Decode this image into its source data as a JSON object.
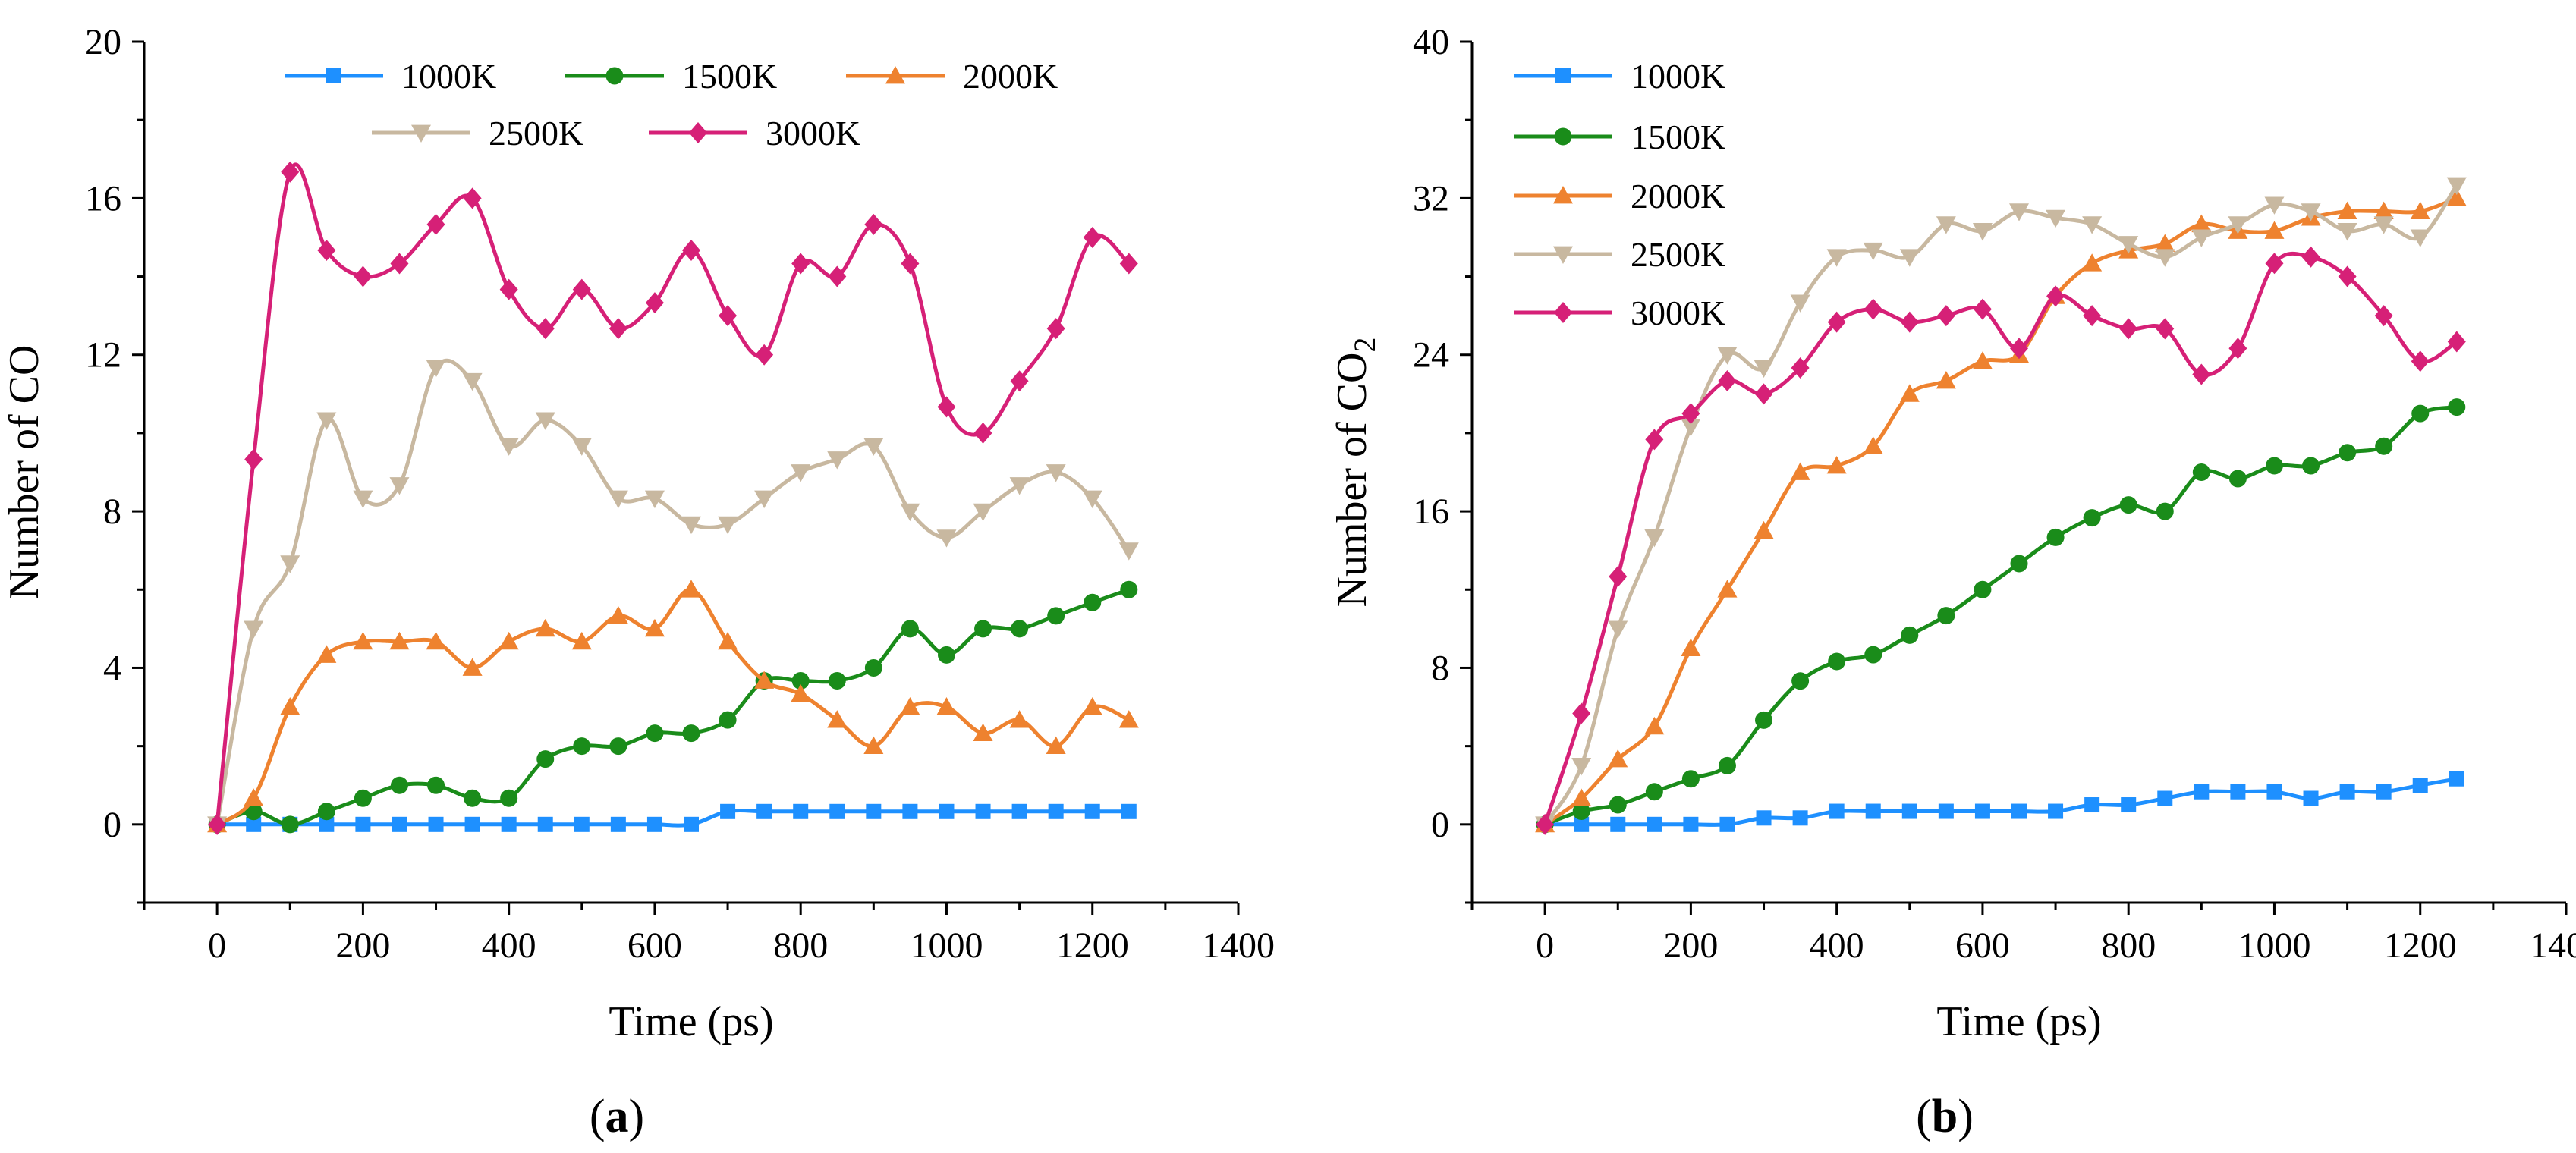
{
  "figure": {
    "panel_labels": [
      "(a)",
      "(b)"
    ],
    "legend_names": [
      "1000K",
      "1500K",
      "2000K",
      "2500K",
      "3000K"
    ],
    "series_colors": {
      "1000K": "#1E90FF",
      "1500K": "#1A8C1A",
      "2000K": "#EE822F",
      "2500K": "#C8B8A0",
      "3000K": "#D62077"
    },
    "marker_shapes": {
      "1000K": "square",
      "1500K": "circle",
      "2000K": "triangle-up",
      "2500K": "triangle-down",
      "3000K": "diamond"
    }
  },
  "chart_data": [
    {
      "type": "line",
      "panel": "(a)",
      "title": "",
      "xlabel": "Time (ps)",
      "ylabel": "Number of CO",
      "xlim": [
        -100,
        1400
      ],
      "ylim": [
        -2,
        20
      ],
      "xticks": [
        0,
        200,
        400,
        600,
        800,
        1000,
        1200,
        1400
      ],
      "yticks": [
        0,
        4,
        8,
        12,
        16,
        20
      ],
      "legend_position": "top",
      "x": [
        0,
        50,
        100,
        150,
        200,
        250,
        300,
        350,
        400,
        450,
        500,
        550,
        600,
        650,
        700,
        750,
        800,
        850,
        900,
        950,
        1000,
        1050,
        1100,
        1150,
        1200,
        1250
      ],
      "series": [
        {
          "name": "1000K",
          "values": [
            0,
            0,
            0,
            0,
            0,
            0,
            0,
            0,
            0,
            0,
            0,
            0,
            0,
            0,
            0.33,
            0.33,
            0.33,
            0.33,
            0.33,
            0.33,
            0.33,
            0.33,
            0.33,
            0.33,
            0.33,
            0.33
          ]
        },
        {
          "name": "1500K",
          "values": [
            0,
            0.33,
            0,
            0.33,
            0.67,
            1,
            1,
            0.67,
            0.67,
            1.67,
            2,
            2,
            2.33,
            2.33,
            2.67,
            3.67,
            3.67,
            3.67,
            4,
            5,
            4.33,
            5,
            5,
            5.33,
            5.67,
            6
          ]
        },
        {
          "name": "2000K",
          "values": [
            0,
            0.67,
            3,
            4.33,
            4.67,
            4.67,
            4.67,
            4,
            4.67,
            5,
            4.67,
            5.33,
            5,
            6,
            4.67,
            3.67,
            3.33,
            2.67,
            2,
            3,
            3,
            2.33,
            2.67,
            2,
            3,
            2.67
          ]
        },
        {
          "name": "2500K",
          "values": [
            0,
            5,
            6.67,
            10.33,
            8.33,
            8.67,
            11.67,
            11.33,
            9.67,
            10.33,
            9.67,
            8.33,
            8.33,
            7.67,
            7.67,
            8.33,
            9,
            9.33,
            9.67,
            8,
            7.33,
            8,
            8.67,
            9,
            8.33,
            7
          ]
        },
        {
          "name": "3000K",
          "values": [
            0,
            9.33,
            16.67,
            14.67,
            14,
            14.33,
            15.33,
            16,
            13.67,
            12.67,
            13.67,
            12.67,
            13.33,
            14.67,
            13,
            12,
            14.33,
            14,
            15.33,
            14.33,
            10.67,
            10,
            11.33,
            12.67,
            15,
            14.33
          ]
        }
      ]
    },
    {
      "type": "line",
      "panel": "(b)",
      "title": "",
      "xlabel": "Time (ps)",
      "ylabel": "Number of CO",
      "ylabel_subscript": "2",
      "xlim": [
        -100,
        1400
      ],
      "ylim": [
        -4,
        40
      ],
      "xticks": [
        0,
        200,
        400,
        600,
        800,
        1000,
        1200,
        1400
      ],
      "yticks": [
        0,
        8,
        16,
        24,
        32,
        40
      ],
      "legend_position": "top-left",
      "x": [
        0,
        50,
        100,
        150,
        200,
        250,
        300,
        350,
        400,
        450,
        500,
        550,
        600,
        650,
        700,
        750,
        800,
        850,
        900,
        950,
        1000,
        1050,
        1100,
        1150,
        1200,
        1250
      ],
      "series": [
        {
          "name": "1000K",
          "values": [
            0,
            0,
            0,
            0,
            0,
            0,
            0.33,
            0.33,
            0.67,
            0.67,
            0.67,
            0.67,
            0.67,
            0.67,
            0.67,
            1,
            1,
            1.33,
            1.67,
            1.67,
            1.67,
            1.33,
            1.67,
            1.67,
            2,
            2.33
          ]
        },
        {
          "name": "1500K",
          "values": [
            0,
            0.67,
            1,
            1.67,
            2.33,
            3,
            5.33,
            7.33,
            8.33,
            8.67,
            9.67,
            10.67,
            12,
            13.33,
            14.67,
            15.67,
            16.33,
            16,
            18,
            17.67,
            18.33,
            18.33,
            19,
            19.33,
            21,
            21.33
          ]
        },
        {
          "name": "2000K",
          "values": [
            0,
            1.33,
            3.33,
            5,
            9,
            12,
            15,
            18,
            18.33,
            19.33,
            22,
            22.67,
            23.67,
            24,
            27,
            28.67,
            29.33,
            29.67,
            30.67,
            30.33,
            30.33,
            31,
            31.33,
            31.33,
            31.33,
            32
          ]
        },
        {
          "name": "2500K",
          "values": [
            0,
            3,
            10,
            14.67,
            20.33,
            24,
            23.33,
            26.67,
            29,
            29.33,
            29,
            30.67,
            30.33,
            31.33,
            31,
            30.67,
            29.67,
            29,
            30,
            30.67,
            31.67,
            31.33,
            30.33,
            30.67,
            30,
            32.67
          ]
        },
        {
          "name": "3000K",
          "values": [
            0,
            5.67,
            12.67,
            19.67,
            21,
            22.67,
            22,
            23.33,
            25.67,
            26.33,
            25.67,
            26,
            26.33,
            24.33,
            27,
            26,
            25.33,
            25.33,
            23,
            24.33,
            28.67,
            29,
            28,
            26,
            23.67,
            24.67
          ]
        }
      ]
    }
  ]
}
